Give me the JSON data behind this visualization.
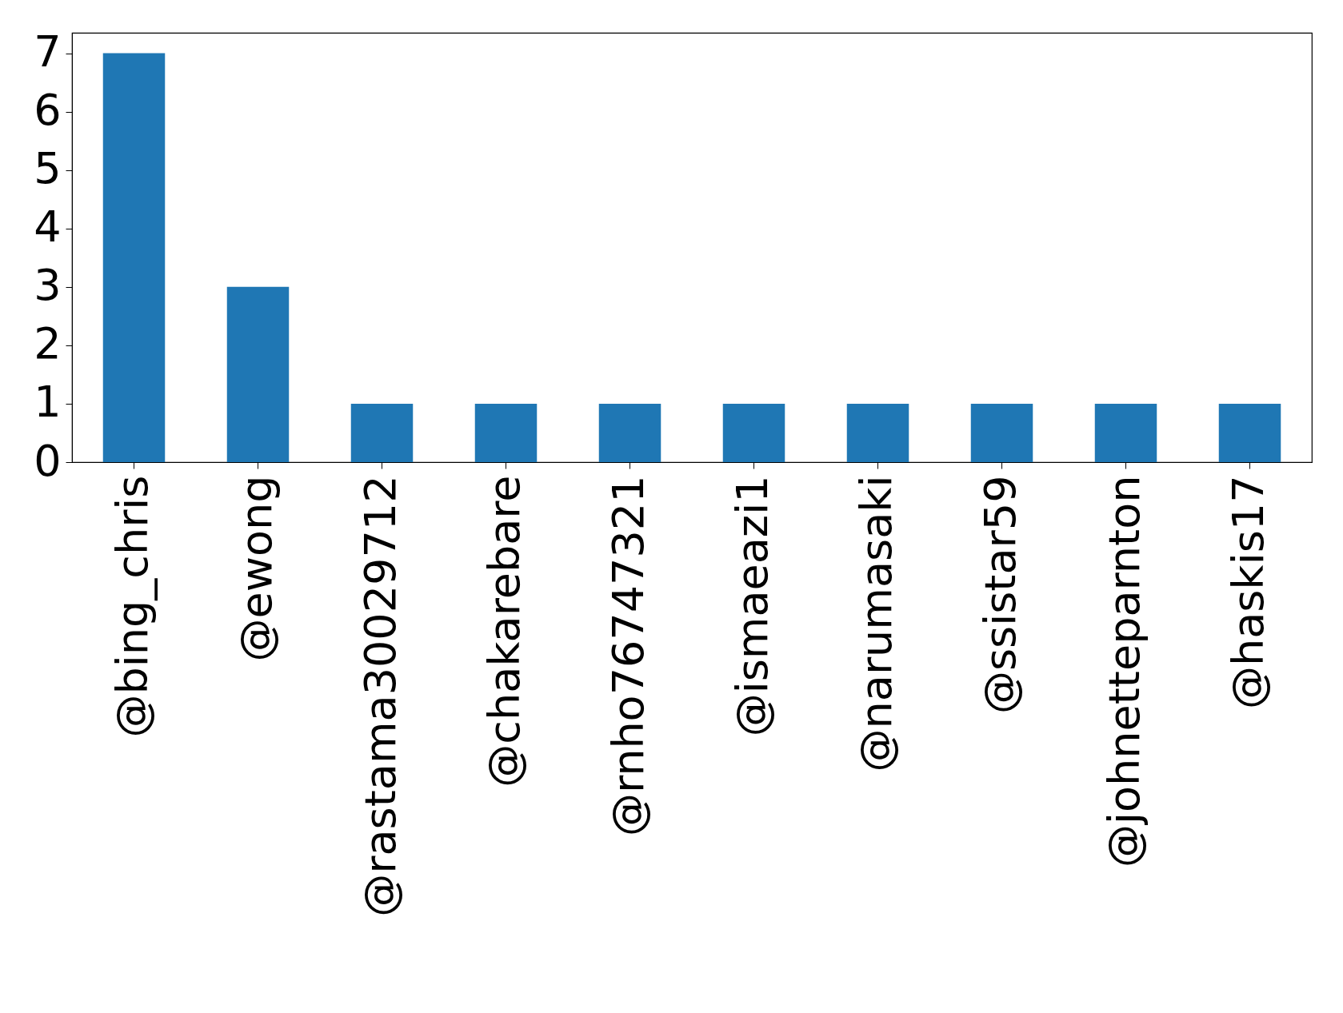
{
  "chart_data": {
    "type": "bar",
    "categories": [
      "@bing_chris",
      "@ewong",
      "@rastama30029712",
      "@chakarebare",
      "@rnho76747321",
      "@ismaeazi1",
      "@narumasaki",
      "@ssistar59",
      "@johnetteparnton",
      "@haskis17"
    ],
    "values": [
      7,
      3,
      1,
      1,
      1,
      1,
      1,
      1,
      1,
      1
    ],
    "color": "#1f77b4",
    "ylim": [
      0,
      7.35
    ],
    "yticks": [
      0,
      1,
      2,
      3,
      4,
      5,
      6,
      7
    ],
    "grid": false
  }
}
